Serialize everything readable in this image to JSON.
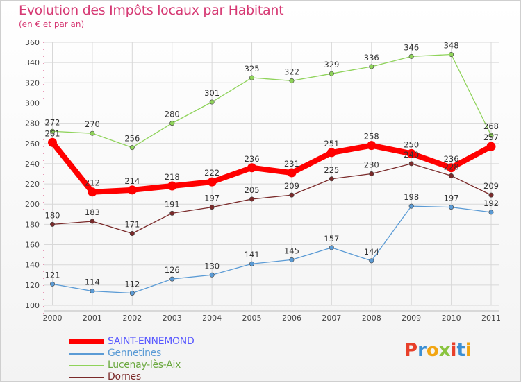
{
  "header": {
    "title": "Evolution des Impôts locaux par Habitant",
    "subtitle": "(en € et par an)"
  },
  "logo": {
    "text": "Proxiti",
    "letters": [
      "P",
      "r",
      "o",
      "x",
      "i",
      "t",
      "i"
    ],
    "letter_colors": [
      "#e8402a",
      "#3b8fd4",
      "#f2a511",
      "#8ac43f",
      "#e8402a",
      "#3b8fd4",
      "#f2a511"
    ]
  },
  "chart_data": {
    "type": "line",
    "title": "Evolution des Impôts locaux par Habitant",
    "subtitle": "(en € et par an)",
    "xlabel": "",
    "ylabel": "",
    "x": [
      "2000",
      "2001",
      "2002",
      "2003",
      "2004",
      "2005",
      "2006",
      "2007",
      "2008",
      "2009",
      "2010",
      "2011"
    ],
    "ylim": [
      100,
      360
    ],
    "yticks": [
      100,
      120,
      140,
      160,
      180,
      200,
      220,
      240,
      260,
      280,
      300,
      320,
      340,
      360
    ],
    "grid": true,
    "legend_position": "bottom-left",
    "series": [
      {
        "name": "SAINT-ENNEMOND",
        "color": "#ff0000",
        "emphasis": true,
        "values": [
          261,
          212,
          214,
          218,
          222,
          236,
          231,
          251,
          258,
          250,
          236,
          257
        ],
        "labels": [
          "261",
          "212",
          "214",
          "218",
          "222",
          "236",
          "231",
          "251",
          "258",
          "250",
          "236",
          "257"
        ]
      },
      {
        "name": "Gennetines",
        "color": "#5b9bd5",
        "emphasis": false,
        "values": [
          121,
          114,
          112,
          126,
          130,
          141,
          145,
          157,
          144,
          198,
          197,
          192
        ],
        "labels": [
          "121",
          "114",
          "112",
          "126",
          "130",
          "141",
          "145",
          "157",
          "144",
          "198",
          "197",
          "192"
        ]
      },
      {
        "name": "Lucenay-lès-Aix",
        "color": "#8fd35a",
        "emphasis": false,
        "values": [
          272,
          270,
          256,
          280,
          301,
          325,
          322,
          329,
          336,
          346,
          348,
          268
        ],
        "labels": [
          "272",
          "270",
          "256",
          "280",
          "301",
          "325",
          "322",
          "329",
          "336",
          "346",
          "348",
          "268"
        ]
      },
      {
        "name": "Dornes",
        "color": "#7a2a2a",
        "emphasis": false,
        "values": [
          180,
          183,
          171,
          191,
          197,
          205,
          209,
          225,
          230,
          240,
          228,
          209
        ],
        "labels": [
          "180",
          "183",
          "171",
          "191",
          "197",
          "205",
          "209",
          "225",
          "230",
          "240",
          "228",
          "209"
        ]
      }
    ]
  }
}
